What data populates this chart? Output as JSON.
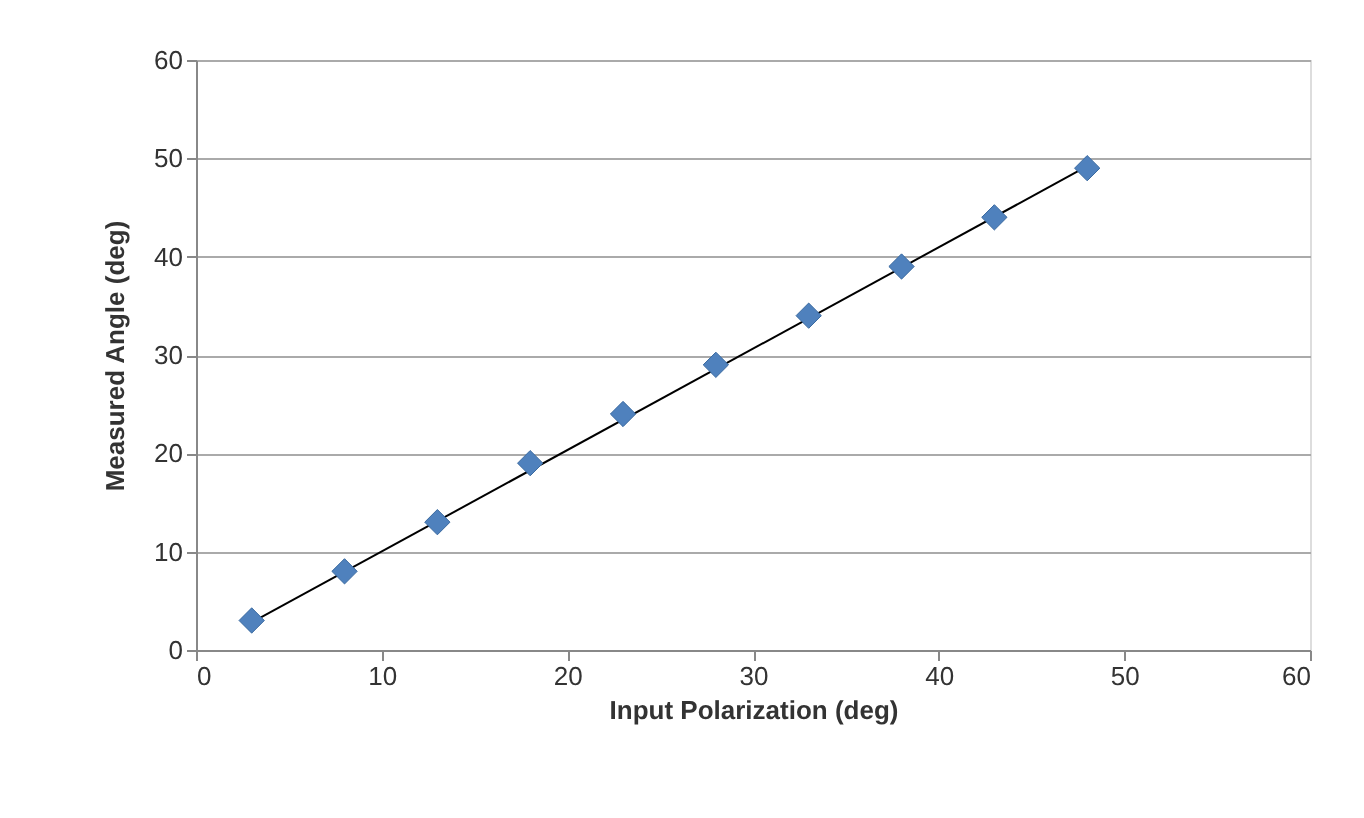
{
  "chart_data": {
    "type": "scatter",
    "xlabel": "Input Polarization (deg)",
    "ylabel": "Measured Angle (deg)",
    "series": [
      {
        "type": "scatter",
        "color": "#4f81bd",
        "x": [
          3,
          8,
          13,
          18,
          23,
          28,
          33,
          38,
          43,
          48
        ],
        "values": [
          3,
          8,
          13,
          19,
          24,
          29,
          34,
          39,
          44,
          49
        ],
        "marker": "diamond"
      },
      {
        "type": "line",
        "color": "#000000",
        "x": [
          3,
          48
        ],
        "values": [
          2.8,
          49.2
        ],
        "marker": "none"
      }
    ],
    "xlim": [
      0,
      60
    ],
    "xticks": [
      0,
      10,
      20,
      30,
      40,
      50,
      60
    ],
    "ylim": [
      0,
      60
    ],
    "yticks": [
      0,
      10,
      20,
      30,
      40,
      50,
      60
    ],
    "grid": "y",
    "line_style": "solid"
  }
}
